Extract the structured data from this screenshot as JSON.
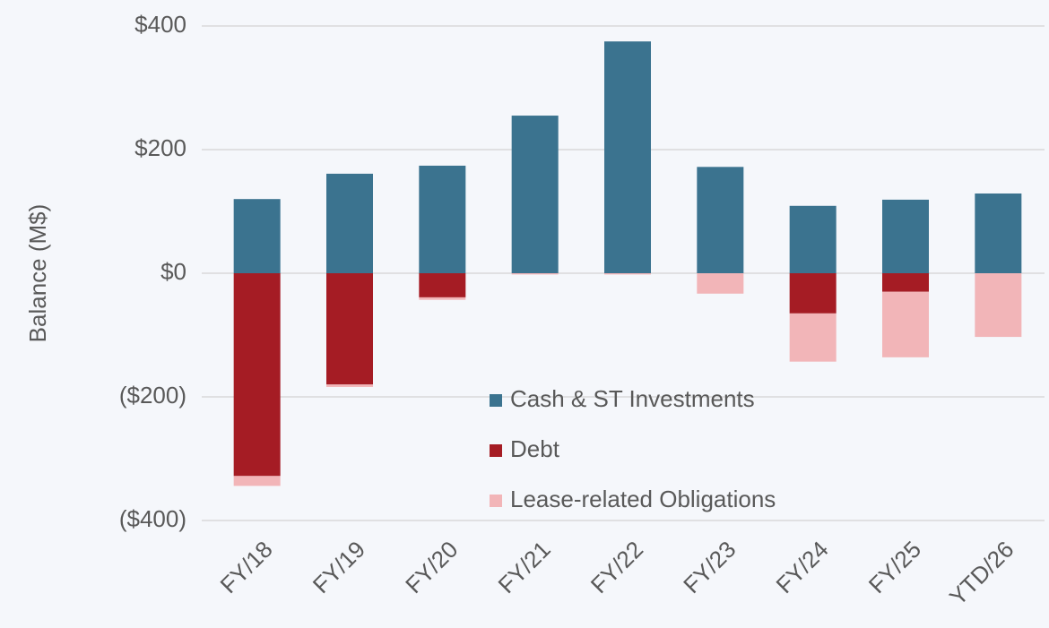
{
  "chart_data": {
    "type": "stacked_bar",
    "y_label": "Balance (M$)",
    "categories": [
      "FY/18",
      "FY/19",
      "FY/20",
      "FY/21",
      "FY/22",
      "FY/23",
      "FY/24",
      "FY/25",
      "YTD/26"
    ],
    "series": [
      {
        "name": "Cash & ST Investments",
        "color": "#3b738f",
        "values": [
          120,
          161,
          174,
          255,
          375,
          172,
          109,
          119,
          129
        ]
      },
      {
        "name": "Debt",
        "color": "#a51c24",
        "values": [
          -328,
          -180,
          -39,
          0,
          0,
          0,
          -65,
          -30,
          0
        ]
      },
      {
        "name": "Lease-related Obligations",
        "color": "#f2b5b8",
        "values": [
          -16,
          -4,
          -4,
          -2,
          -2,
          -33,
          -78,
          -106,
          -103
        ]
      }
    ],
    "ylim": [
      -400,
      400
    ],
    "yticks": [
      {
        "value": 400,
        "label": "$400"
      },
      {
        "value": 200,
        "label": "$200"
      },
      {
        "value": 0,
        "label": "$0"
      },
      {
        "value": -200,
        "label": "($200)"
      },
      {
        "value": -400,
        "label": "($400)"
      }
    ],
    "grid": true
  }
}
